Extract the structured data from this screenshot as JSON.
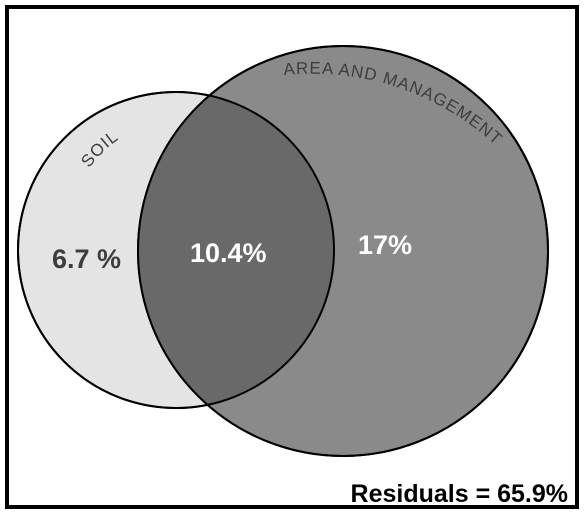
{
  "sets": {
    "soil": {
      "label": "SOIL",
      "only_value": "6.7 %"
    },
    "area_management": {
      "label": "AREA AND MANAGEMENT",
      "only_value": "17%"
    },
    "intersection_value": "10.4%"
  },
  "residuals_label": "Residuals = 65.9%",
  "colors": {
    "soil_fill": "#e4e4e4",
    "area_management_fill": "#8a8a8a",
    "intersection_fill": "#696969",
    "outline": "#000000",
    "dark_text": "#3d3d3d",
    "light_text": "#ffffff",
    "residuals_text": "#000000"
  }
}
